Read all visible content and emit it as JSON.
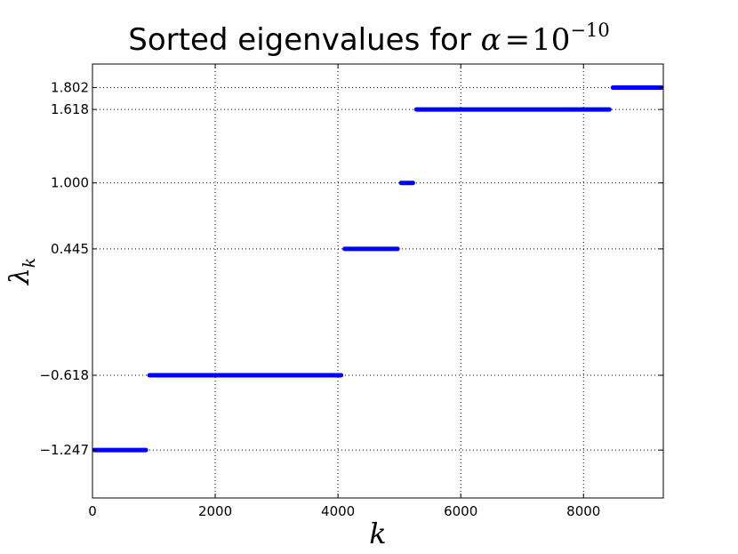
{
  "chart_data": {
    "type": "scatter",
    "title_text": "Sorted eigenvalues for ",
    "title_math": {
      "symbol": "α",
      "equals": "=",
      "base": "10",
      "exponent": "−10"
    },
    "xlabel": "k",
    "ylabel": {
      "symbol": "λ",
      "subscript": "k"
    },
    "xlim": [
      0,
      9300
    ],
    "ylim": [
      -1.65,
      2.0
    ],
    "grid": true,
    "color": "#0000ff",
    "xticks": [
      {
        "value": 0,
        "label": "0"
      },
      {
        "value": 2000,
        "label": "2000"
      },
      {
        "value": 4000,
        "label": "4000"
      },
      {
        "value": 6000,
        "label": "6000"
      },
      {
        "value": 8000,
        "label": "8000"
      }
    ],
    "yticks": [
      {
        "value": -1.247,
        "label": "−1.247"
      },
      {
        "value": -0.618,
        "label": "−0.618"
      },
      {
        "value": 0.445,
        "label": "0.445"
      },
      {
        "value": 1.0,
        "label": "1.000"
      },
      {
        "value": 1.618,
        "label": "1.618"
      },
      {
        "value": 1.802,
        "label": "1.802"
      }
    ],
    "series": [
      {
        "x_start": 0,
        "x_end": 900,
        "value": -1.247
      },
      {
        "x_start": 900,
        "x_end": 4080,
        "value": -0.618
      },
      {
        "x_start": 4080,
        "x_end": 5000,
        "value": 0.445
      },
      {
        "x_start": 5000,
        "x_end": 5250,
        "value": 1.0
      },
      {
        "x_start": 5250,
        "x_end": 8450,
        "value": 1.618
      },
      {
        "x_start": 8450,
        "x_end": 9300,
        "value": 1.802
      }
    ]
  }
}
